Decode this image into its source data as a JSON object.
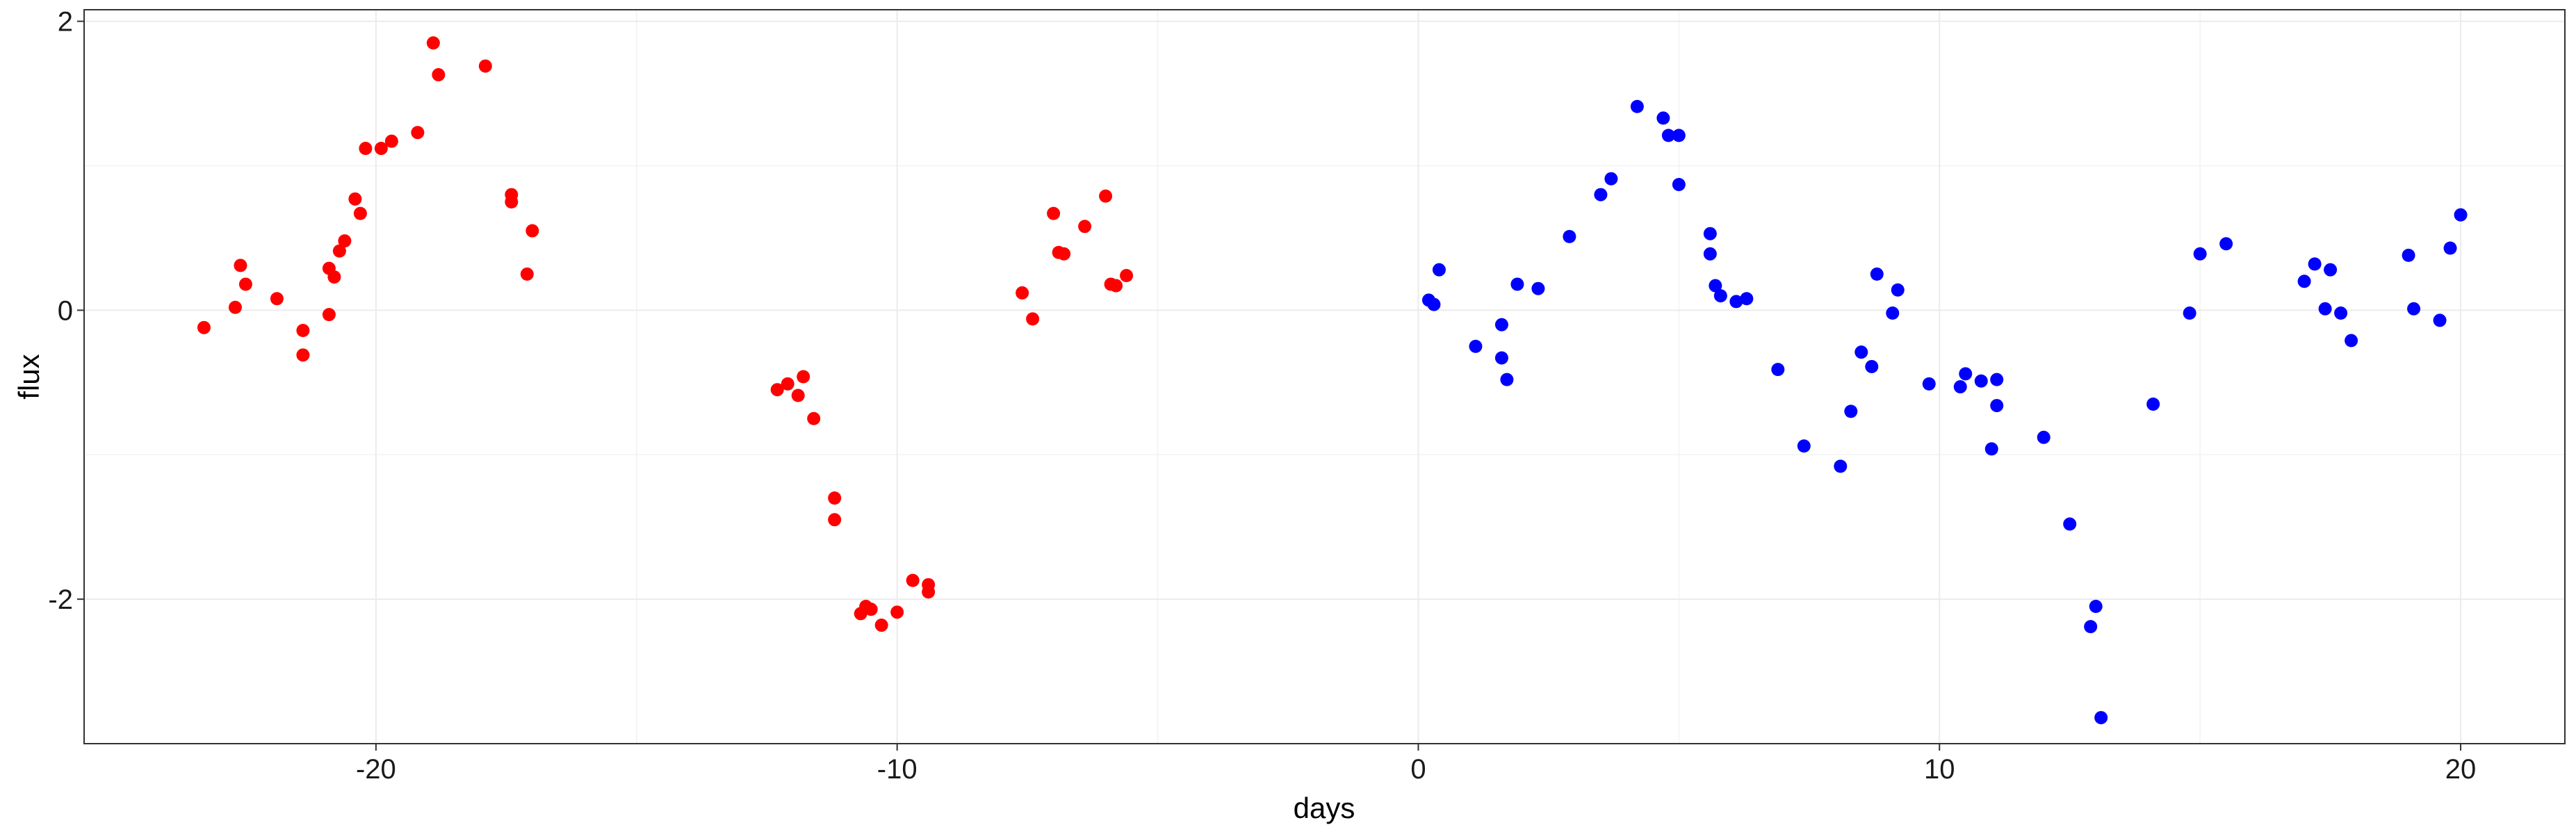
{
  "chart_data": {
    "type": "scatter",
    "title": "",
    "xlabel": "days",
    "ylabel": "flux",
    "xlim": [
      -25.6,
      22.0
    ],
    "ylim": [
      -3.0,
      2.08
    ],
    "x_ticks": [
      -20,
      -10,
      0,
      10,
      20
    ],
    "y_ticks": [
      -2,
      0,
      2
    ],
    "grid": true,
    "legend": "none",
    "series": [
      {
        "color": "#ff0000",
        "x": [
          -23.3,
          -22.7,
          -22.6,
          -22.5,
          -21.9,
          -21.4,
          -21.4,
          -20.9,
          -20.9,
          -20.8,
          -20.7,
          -20.6,
          -20.4,
          -20.3,
          -20.2,
          -19.9,
          -19.7,
          -19.2,
          -18.9,
          -18.8,
          -17.9,
          -17.4,
          -17.4,
          -17.0,
          -17.1,
          -12.3,
          -12.1,
          -11.9,
          -11.8,
          -11.6,
          -11.2,
          -11.2,
          -10.7,
          -10.6,
          -10.5,
          -10.3,
          -10.0,
          -9.7,
          -9.4,
          -9.4,
          -7.6,
          -7.4,
          -7.0,
          -6.9,
          -6.8,
          -6.4,
          -6.0,
          -5.9,
          -5.8,
          -5.6
        ],
        "y": [
          -0.12,
          0.02,
          0.31,
          0.18,
          0.08,
          -0.14,
          -0.31,
          -0.03,
          0.29,
          0.23,
          0.41,
          0.48,
          0.77,
          0.67,
          1.12,
          1.12,
          1.17,
          1.23,
          1.85,
          1.63,
          1.69,
          0.8,
          0.75,
          0.55,
          0.25,
          -0.55,
          -0.51,
          -0.59,
          -0.46,
          -0.75,
          -1.3,
          -1.45,
          -2.1,
          -2.05,
          -2.07,
          -2.18,
          -2.09,
          -1.87,
          -1.9,
          -1.95,
          0.12,
          -0.06,
          0.67,
          0.4,
          0.39,
          0.58,
          0.79,
          0.18,
          0.17,
          0.24
        ]
      },
      {
        "color": "#0000ff",
        "x": [
          0.2,
          0.3,
          0.4,
          1.1,
          1.6,
          1.6,
          1.7,
          1.9,
          2.3,
          2.9,
          3.5,
          3.7,
          4.2,
          4.7,
          4.8,
          5.0,
          5.0,
          5.6,
          5.6,
          5.7,
          5.8,
          6.1,
          6.3,
          6.9,
          7.4,
          8.1,
          8.3,
          8.5,
          8.7,
          8.8,
          9.1,
          9.2,
          9.8,
          10.4,
          10.5,
          10.8,
          11.0,
          11.1,
          11.1,
          12.0,
          12.5,
          12.9,
          13.0,
          13.1,
          14.1,
          14.8,
          15.0,
          15.5,
          17.0,
          17.2,
          17.4,
          17.5,
          17.7,
          17.9,
          19.0,
          19.1,
          19.6,
          19.8,
          20.0
        ],
        "y": [
          0.07,
          0.04,
          0.28,
          -0.25,
          -0.1,
          -0.33,
          -0.48,
          0.18,
          0.15,
          0.51,
          0.8,
          0.91,
          1.41,
          1.33,
          1.21,
          1.21,
          0.87,
          0.53,
          0.39,
          0.17,
          0.1,
          0.06,
          0.08,
          -0.41,
          -0.94,
          -1.08,
          -0.7,
          -0.29,
          -0.39,
          0.25,
          -0.02,
          0.14,
          -0.51,
          -0.53,
          -0.44,
          -0.49,
          -0.96,
          -0.48,
          -0.66,
          -0.88,
          -1.48,
          -2.19,
          -2.05,
          -2.82,
          -0.65,
          -0.02,
          0.39,
          0.46,
          0.2,
          0.32,
          0.01,
          0.28,
          -0.02,
          -0.21,
          0.38,
          0.01,
          -0.07,
          0.43,
          0.66
        ]
      }
    ]
  }
}
